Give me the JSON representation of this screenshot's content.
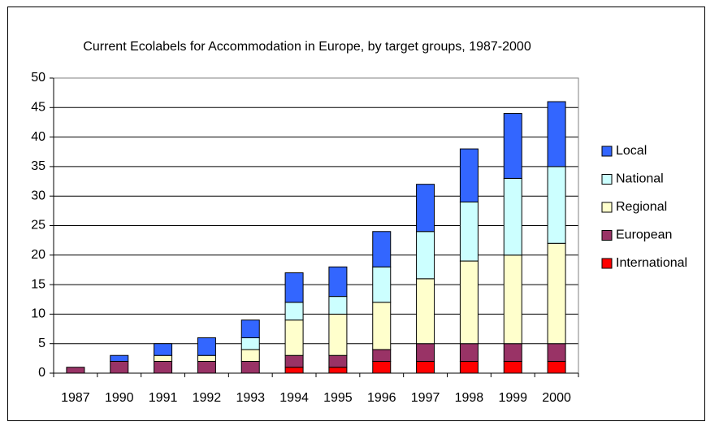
{
  "chart_data": {
    "type": "bar",
    "stacked": true,
    "title": "Current Ecolabels for Accommodation in Europe, by target groups, 1987-2000",
    "categories": [
      "1987",
      "1990",
      "1991",
      "1992",
      "1993",
      "1994",
      "1995",
      "1996",
      "1997",
      "1998",
      "1999",
      "2000"
    ],
    "series": [
      {
        "name": "International",
        "color": "#ff0000",
        "values": [
          0,
          0,
          0,
          0,
          0,
          1,
          1,
          2,
          2,
          2,
          2,
          2
        ]
      },
      {
        "name": "European",
        "color": "#993366",
        "values": [
          1,
          2,
          2,
          2,
          2,
          2,
          2,
          2,
          3,
          3,
          3,
          3
        ]
      },
      {
        "name": "Regional",
        "color": "#ffffcc",
        "values": [
          0,
          0,
          1,
          1,
          2,
          6,
          7,
          8,
          11,
          14,
          15,
          17
        ]
      },
      {
        "name": "National",
        "color": "#ccffff",
        "values": [
          0,
          0,
          0,
          0,
          2,
          3,
          3,
          6,
          8,
          10,
          13,
          13
        ]
      },
      {
        "name": "Local",
        "color": "#3366ff",
        "values": [
          0,
          1,
          2,
          3,
          3,
          5,
          5,
          6,
          8,
          9,
          11,
          11
        ]
      }
    ],
    "ylim": [
      0,
      50
    ],
    "yticks": [
      0,
      5,
      10,
      15,
      20,
      25,
      30,
      35,
      40,
      45,
      50
    ],
    "grid": true,
    "legend": "right"
  }
}
